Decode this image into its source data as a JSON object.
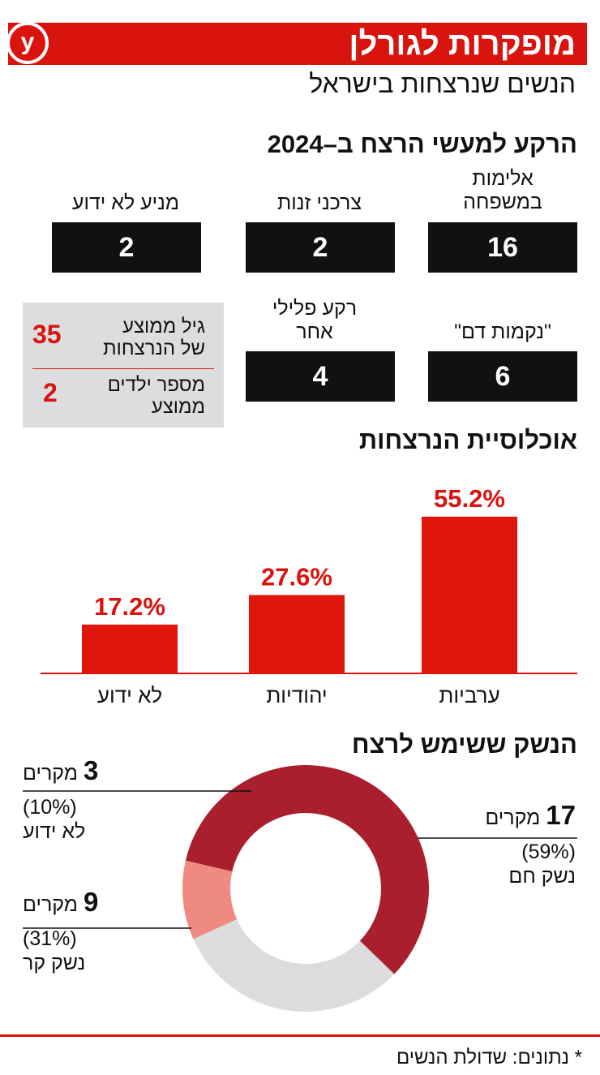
{
  "header": {
    "title": "מופקרות לגורלן",
    "logo": "y",
    "subtitle": "הנשים שנרצחות בישראל"
  },
  "background": {
    "title": "הרקע למעשי הרצח ב–2024",
    "items": [
      {
        "label_line1": "אלימות",
        "label_line2": "במשפחה",
        "value": "16"
      },
      {
        "label_line1": "צרכני זנות",
        "label_line2": "",
        "value": "2"
      },
      {
        "label_line1": "מניע לא ידוע",
        "label_line2": "",
        "value": "2"
      },
      {
        "label_line1": "\"נקמות דם\"",
        "label_line2": "",
        "value": "6"
      },
      {
        "label_line1": "רקע פלילי",
        "label_line2": "אחר",
        "value": "4"
      }
    ]
  },
  "stats": {
    "avg_age_line1": "גיל ממוצע",
    "avg_age_line2": "של הנרצחות",
    "avg_age_value": "35",
    "avg_children_line1": "מספר ילדים",
    "avg_children_line2": "ממוצע",
    "avg_children_value": "2"
  },
  "population_title": "אוכלוסיית הנרצחות",
  "weapon_title": "הנשק ששימש לרצח",
  "source": "* נתונים: שדולת הנשים",
  "colors": {
    "accent": "#d9140e",
    "bar": "#e0150c",
    "hot_weapon": "#a91f2e",
    "unknown": "#ef8a80",
    "cold_weapon": "#dcdcde"
  },
  "chart_data": [
    {
      "type": "bar",
      "categories": [
        "ערביות",
        "יהודיות",
        "לא ידוע"
      ],
      "values": [
        55.2,
        27.6,
        17.2
      ],
      "value_labels": [
        "55.2%",
        "27.6%",
        "17.2%"
      ],
      "title": "אוכלוסיית הנרצחות",
      "ylim": [
        0,
        60
      ],
      "grid": false
    },
    {
      "type": "pie",
      "title": "הנשק ששימש לרצח",
      "donut": true,
      "categories": [
        "נשק חם",
        "נשק קר",
        "לא ידוע"
      ],
      "values": [
        17,
        9,
        3
      ],
      "counts": [
        "17",
        "9",
        "3"
      ],
      "count_unit": "מקרים",
      "percent_labels": [
        "(59%)",
        "(31%)",
        "(10%)"
      ],
      "colors": [
        "#a91f2e",
        "#dcdcde",
        "#ef8a80"
      ]
    }
  ]
}
